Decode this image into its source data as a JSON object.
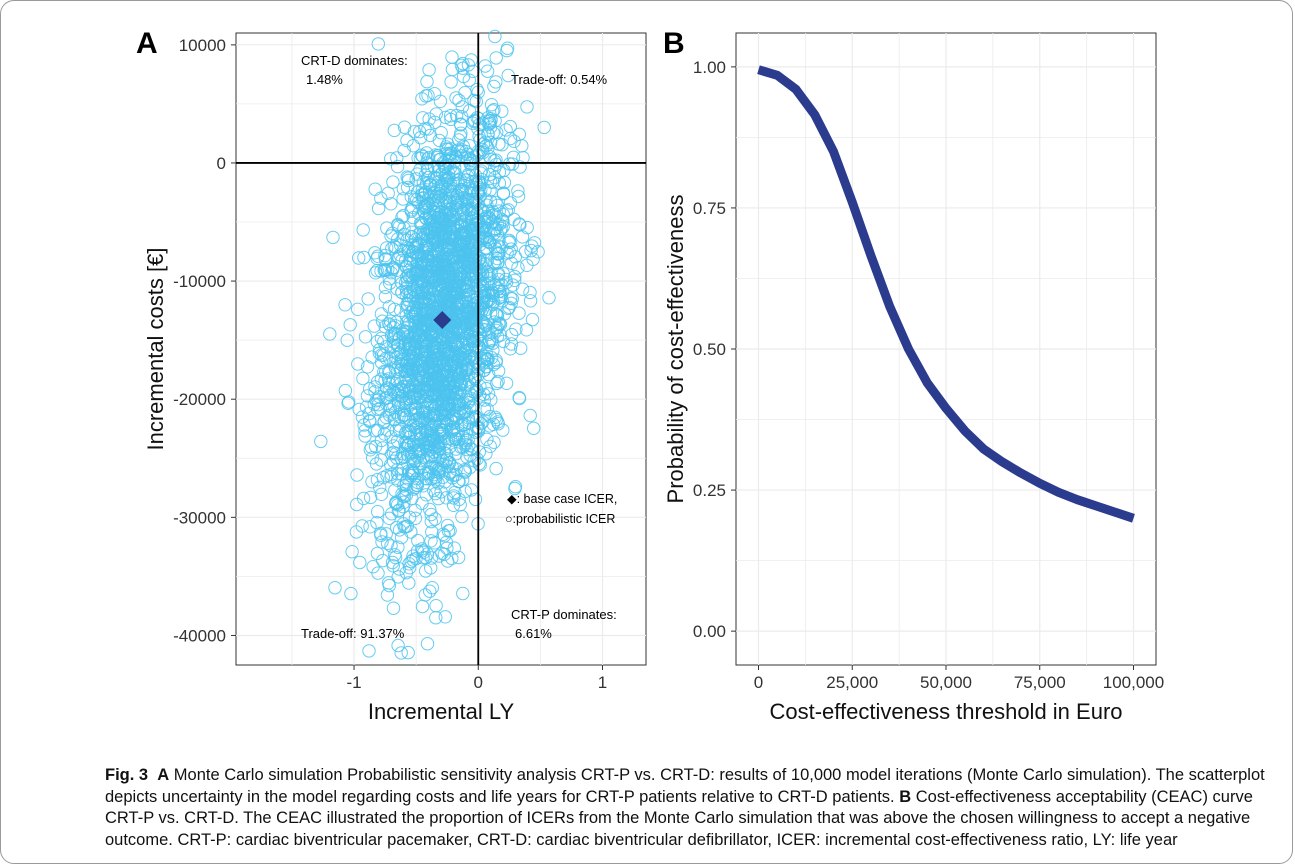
{
  "panels": {
    "a": {
      "letter": "A",
      "chart_data": {
        "type": "scatter",
        "xlabel": "Incremental LY",
        "ylabel": "Incremental costs [€]",
        "xlim": [
          -1.95,
          1.35
        ],
        "ylim": [
          -42500,
          11000
        ],
        "x_ticks": [
          -1,
          0,
          1
        ],
        "y_ticks": [
          10000,
          0,
          -10000,
          -20000,
          -30000,
          -40000
        ],
        "x_tick_labels": [
          "-1",
          "0",
          "1"
        ],
        "y_tick_labels": [
          "10000",
          "0",
          "-10000",
          "-20000",
          "-30000",
          "-40000"
        ],
        "grid": true,
        "reference_lines": {
          "x": 0,
          "y": 0
        },
        "base_case": {
          "x": -0.29,
          "y": -13300
        },
        "probabilistic_cloud": {
          "iterations": 10000,
          "x_mean": -0.29,
          "x_sd": 0.26,
          "y_mean": -13300,
          "y_sd": 8800
        },
        "point_color": "#4cc3ee",
        "base_case_color": "#2b3c8f",
        "annotations": {
          "nw": [
            "CRT-D dominates:",
            "1.48%"
          ],
          "ne": "Trade-off: 0.54%",
          "sw": "Trade-off: 91.37%",
          "se": [
            "CRT-P dominates:",
            "6.61%"
          ]
        },
        "legend": {
          "base_case": "◆: base case ICER,",
          "probabilistic": "○:probabilistic ICER"
        }
      }
    },
    "b": {
      "letter": "B",
      "chart_data": {
        "type": "line",
        "xlabel": "Cost-effectiveness threshold in Euro",
        "ylabel": "Probability of cost-effectiveness",
        "xlim": [
          -6000,
          106000
        ],
        "ylim": [
          -0.06,
          1.06
        ],
        "x_ticks": [
          0,
          25000,
          50000,
          75000,
          100000
        ],
        "x_tick_labels": [
          "0",
          "25,000",
          "50,000",
          "75,000",
          "100,000"
        ],
        "y_ticks": [
          0,
          0.25,
          0.5,
          0.75,
          1
        ],
        "y_tick_labels": [
          "0.00",
          "0.25",
          "0.50",
          "0.75",
          "1.00"
        ],
        "grid": true,
        "line_color": "#2b3c8f",
        "x": [
          0,
          5000,
          10000,
          15000,
          20000,
          25000,
          30000,
          35000,
          40000,
          45000,
          50000,
          55000,
          60000,
          65000,
          70000,
          75000,
          80000,
          85000,
          90000,
          95000,
          100000
        ],
        "y": [
          0.995,
          0.985,
          0.96,
          0.915,
          0.85,
          0.76,
          0.665,
          0.575,
          0.5,
          0.44,
          0.395,
          0.355,
          0.323,
          0.3,
          0.28,
          0.262,
          0.246,
          0.233,
          0.222,
          0.211,
          0.2
        ]
      }
    }
  },
  "caption": {
    "fig_label": "Fig. 3",
    "a_label": "A",
    "a_text": " Monte Carlo simulation Probabilistic sensitivity analysis CRT-P vs. CRT-D: results of 10,000 model iterations (Monte Carlo simulation). The scatterplot depicts uncertainty in the model regarding costs and life years for CRT-P patients relative to CRT-D patients. ",
    "b_label": "B",
    "b_text": " Cost-effectiveness acceptability (CEAC) curve CRT-P vs. CRT-D. The CEAC illustrated the proportion of ICERs from the Monte Carlo simulation that was above the chosen willingness to accept a negative outcome. CRT-P: cardiac biventricular pacemaker, CRT-D: cardiac biventricular defibrillator, ICER: incremental cost-effectiveness ratio, LY: life year"
  }
}
